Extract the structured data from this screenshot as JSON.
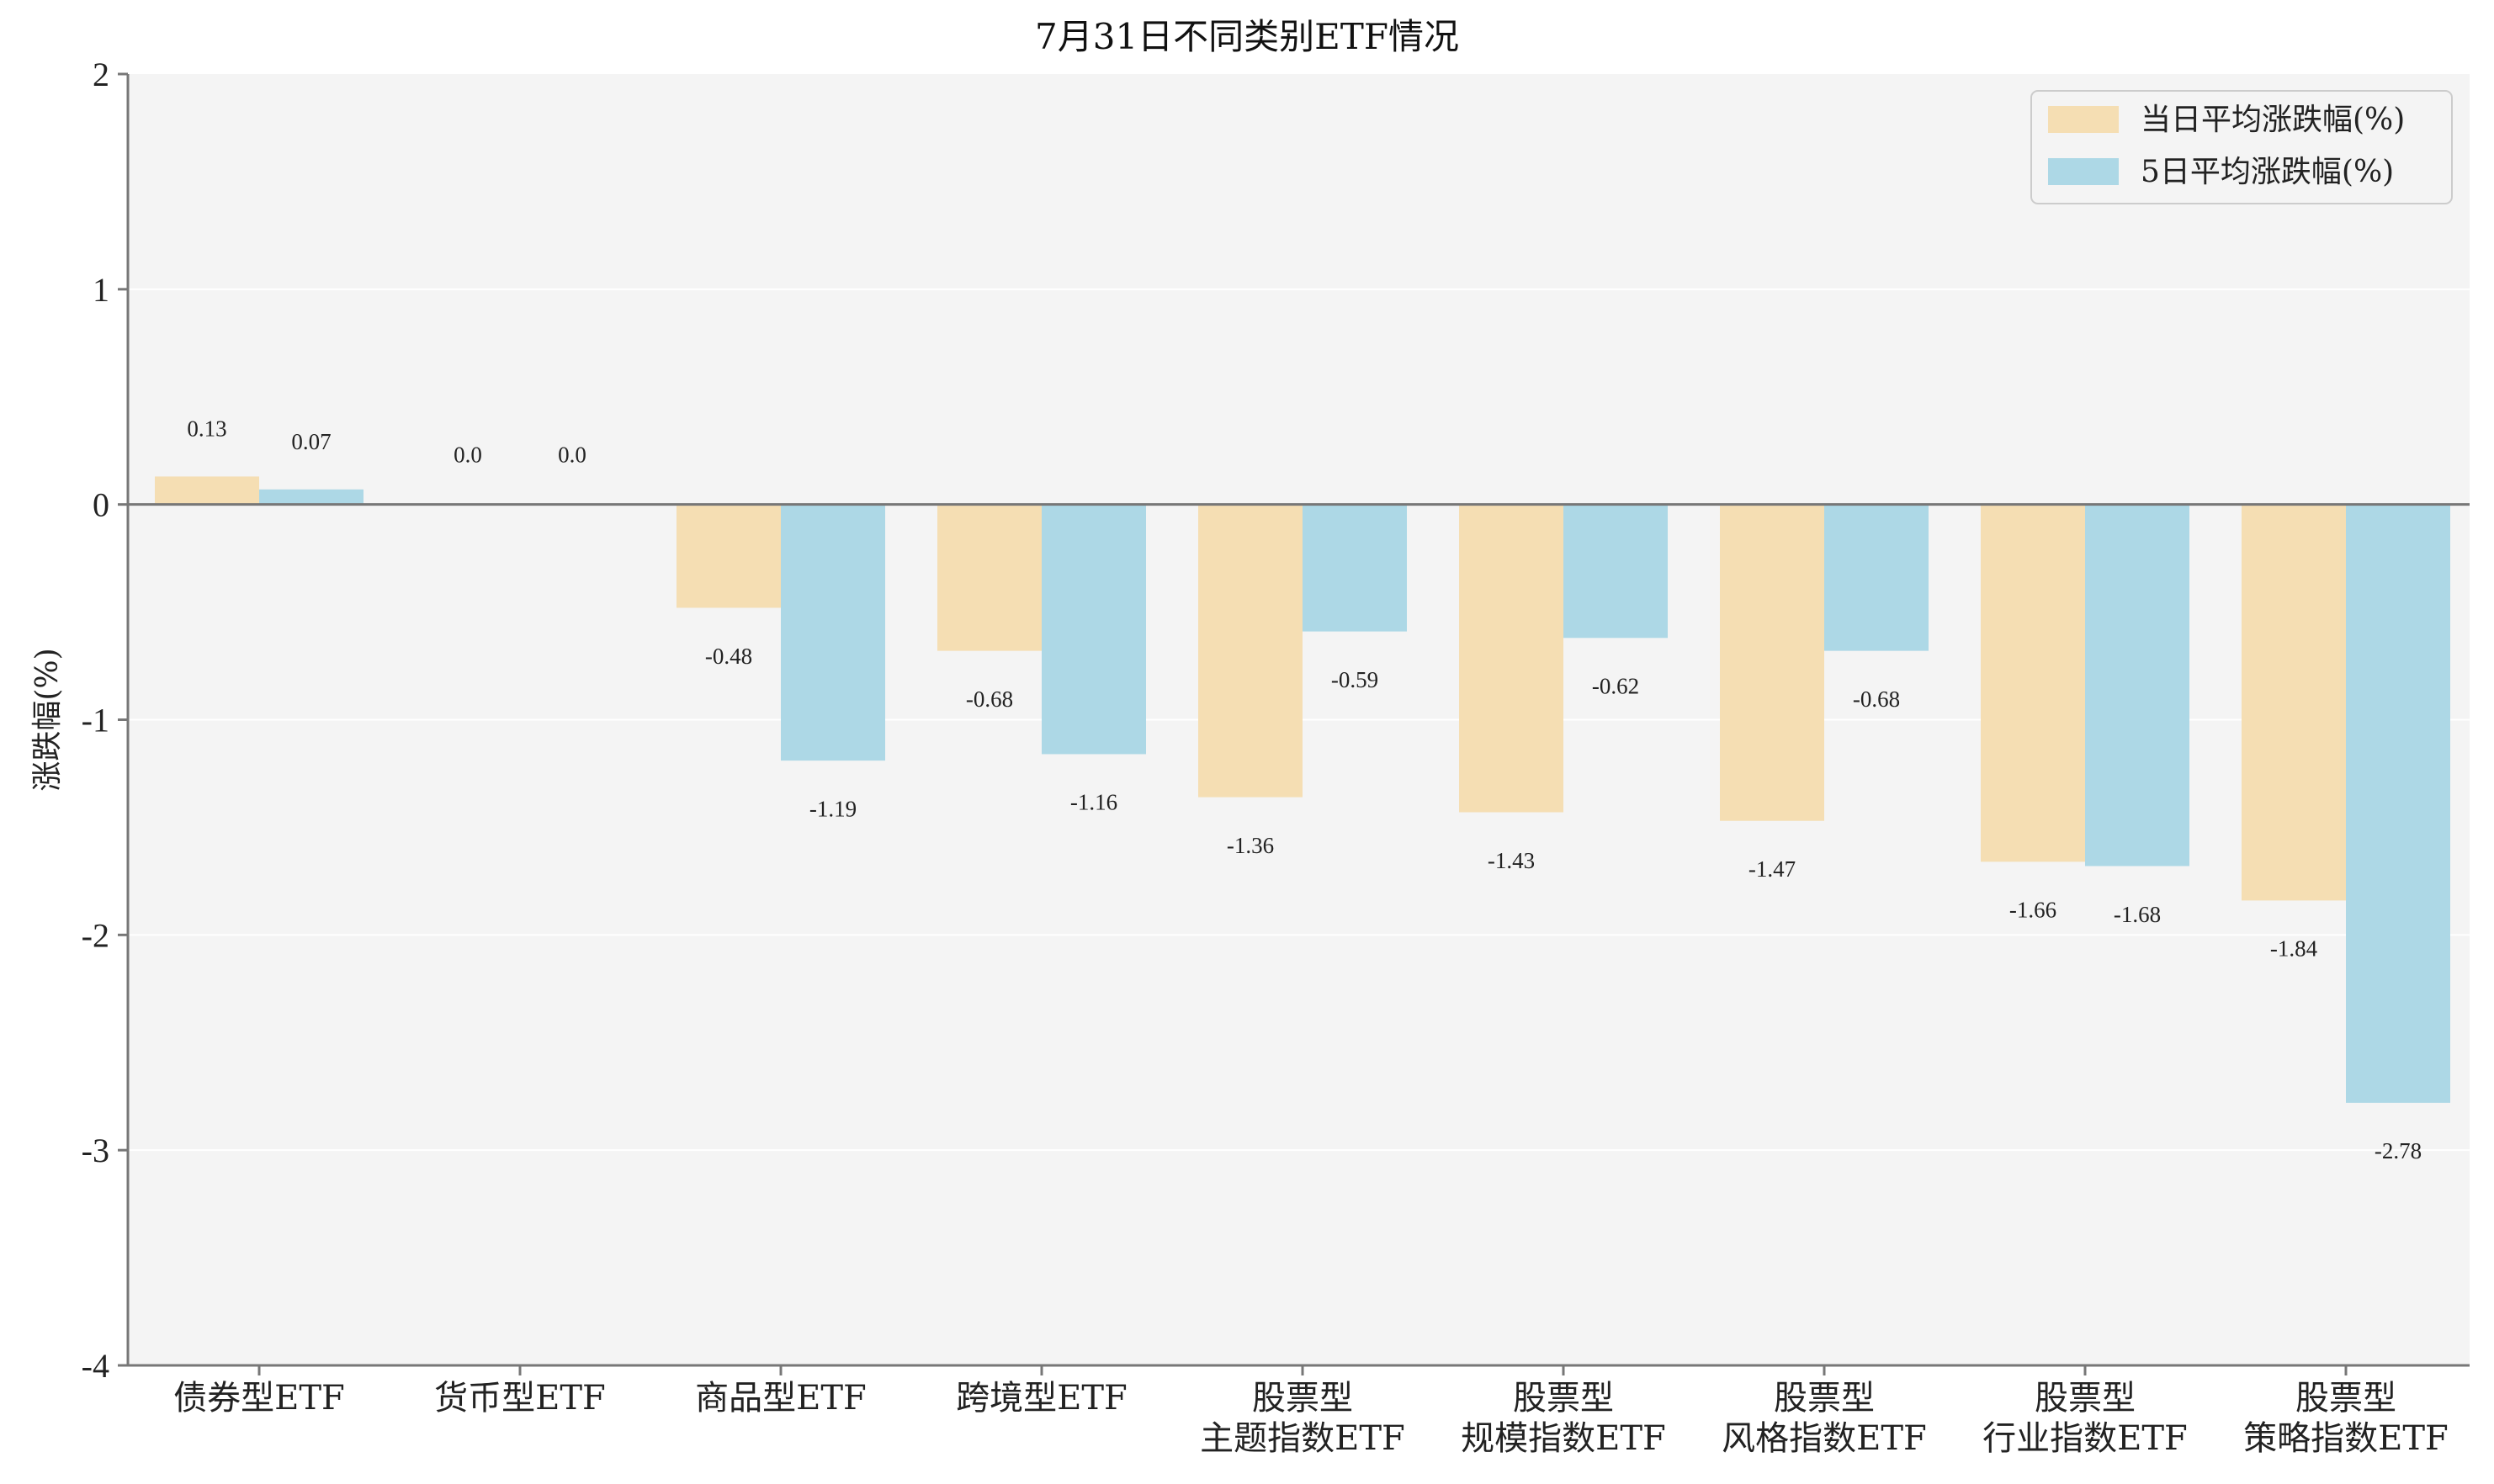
{
  "chart_data": {
    "type": "bar",
    "title": "7月31日不同类别ETF情况",
    "xlabel": "",
    "ylabel": "涨跌幅(%)",
    "ylim": [
      -4,
      2
    ],
    "yticks": [
      2,
      1,
      0,
      -1,
      -2,
      -3,
      -4
    ],
    "grid": true,
    "legend_position": "top-right",
    "categories": [
      [
        "债券型ETF"
      ],
      [
        "货币型ETF"
      ],
      [
        "商品型ETF"
      ],
      [
        "跨境型ETF"
      ],
      [
        "股票型",
        "主题指数ETF"
      ],
      [
        "股票型",
        "规模指数ETF"
      ],
      [
        "股票型",
        "风格指数ETF"
      ],
      [
        "股票型",
        "行业指数ETF"
      ],
      [
        "股票型",
        "策略指数ETF"
      ]
    ],
    "series": [
      {
        "name": "当日平均涨跌幅(%)",
        "color": "#F5DEB3",
        "values": [
          0.13,
          0.0,
          -0.48,
          -0.68,
          -1.36,
          -1.43,
          -1.47,
          -1.66,
          -1.84
        ],
        "labels": [
          "0.13",
          "0.0",
          "-0.48",
          "-0.68",
          "-1.36",
          "-1.43",
          "-1.47",
          "-1.66",
          "-1.84"
        ]
      },
      {
        "name": "5日平均涨跌幅(%)",
        "color": "#ADD8E6",
        "values": [
          0.07,
          0.0,
          -1.19,
          -1.16,
          -0.59,
          -0.62,
          -0.68,
          -1.68,
          -2.78
        ],
        "labels": [
          "0.07",
          "0.0",
          "-1.19",
          "-1.16",
          "-0.59",
          "-0.62",
          "-0.68",
          "-1.68",
          "-2.78"
        ]
      }
    ]
  },
  "colors": {
    "plot_background": "#F4F4F4",
    "grid": "#FFFFFF",
    "axis": "#777777"
  }
}
